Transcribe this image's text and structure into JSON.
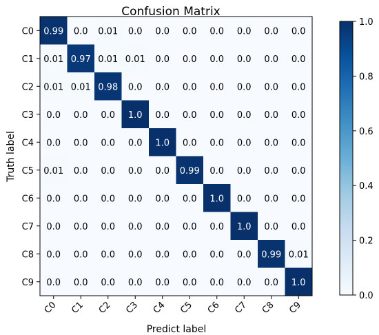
{
  "chart_data": {
    "type": "heatmap",
    "title": "Confusion Matrix",
    "xlabel": "Predict label",
    "ylabel": "Truth label",
    "row_labels": [
      "C0",
      "C1",
      "C2",
      "C3",
      "C4",
      "C5",
      "C6",
      "C7",
      "C8",
      "C9"
    ],
    "col_labels": [
      "C0",
      "C1",
      "C2",
      "C3",
      "C4",
      "C5",
      "C6",
      "C7",
      "C8",
      "C9"
    ],
    "cell_labels": [
      [
        "0.99",
        "0.0",
        "0.01",
        "0.0",
        "0.0",
        "0.0",
        "0.0",
        "0.0",
        "0.0",
        "0.0"
      ],
      [
        "0.01",
        "0.97",
        "0.01",
        "0.01",
        "0.0",
        "0.0",
        "0.0",
        "0.0",
        "0.0",
        "0.0"
      ],
      [
        "0.01",
        "0.01",
        "0.98",
        "0.0",
        "0.0",
        "0.0",
        "0.0",
        "0.0",
        "0.0",
        "0.0"
      ],
      [
        "0.0",
        "0.0",
        "0.0",
        "1.0",
        "0.0",
        "0.0",
        "0.0",
        "0.0",
        "0.0",
        "0.0"
      ],
      [
        "0.0",
        "0.0",
        "0.0",
        "0.0",
        "1.0",
        "0.0",
        "0.0",
        "0.0",
        "0.0",
        "0.0"
      ],
      [
        "0.01",
        "0.0",
        "0.0",
        "0.0",
        "0.0",
        "0.99",
        "0.0",
        "0.0",
        "0.0",
        "0.0"
      ],
      [
        "0.0",
        "0.0",
        "0.0",
        "0.0",
        "0.0",
        "0.0",
        "1.0",
        "0.0",
        "0.0",
        "0.0"
      ],
      [
        "0.0",
        "0.0",
        "0.0",
        "0.0",
        "0.0",
        "0.0",
        "0.0",
        "1.0",
        "0.0",
        "0.0"
      ],
      [
        "0.0",
        "0.0",
        "0.0",
        "0.0",
        "0.0",
        "0.0",
        "0.0",
        "0.0",
        "0.99",
        "0.01"
      ],
      [
        "0.0",
        "0.0",
        "0.0",
        "0.0",
        "0.0",
        "0.0",
        "0.0",
        "0.0",
        "0.0",
        "1.0"
      ]
    ],
    "colorbar": {
      "range": [
        0.0,
        1.0
      ],
      "tick_labels": [
        "0.0",
        "0.2",
        "0.4",
        "0.6",
        "0.8",
        "1.0"
      ],
      "colormap": "Blues",
      "low_color": "#f7fbff",
      "high_color": "#08306b"
    },
    "grid": false,
    "legend": "colorbar at right"
  }
}
